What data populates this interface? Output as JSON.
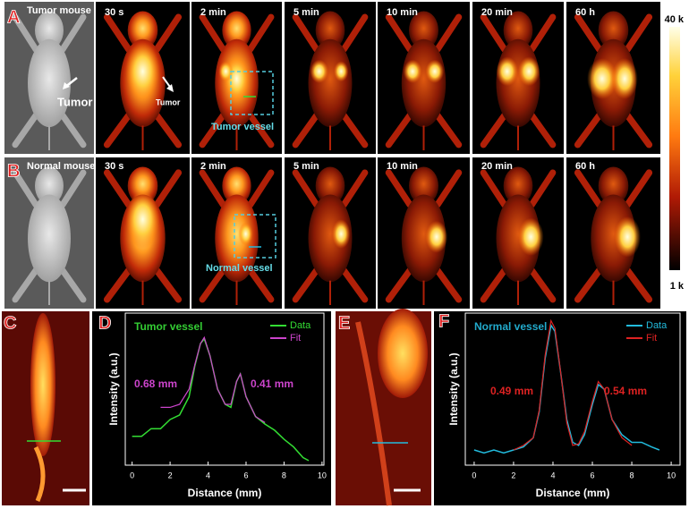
{
  "panels": {
    "row_a": {
      "letter": "A",
      "name": "Tumor mouse",
      "times": [
        "30 s",
        "2 min",
        "5 min",
        "10 min",
        "20 min",
        "60 h"
      ],
      "tumor_label": "Tumor",
      "tumor_label_small": "Tumor",
      "box_label": "Tumor vessel"
    },
    "row_b": {
      "letter": "B",
      "name": "Normal mouse",
      "times": [
        "30 s",
        "2 min",
        "5 min",
        "10 min",
        "20 min",
        "60 h"
      ],
      "box_label": "Normal vessel"
    },
    "panel_c": {
      "letter": "C"
    },
    "panel_e": {
      "letter": "E"
    }
  },
  "colorbar": {
    "top": "40 k",
    "bottom": "1 k"
  },
  "chart_data": [
    {
      "type": "line",
      "letter": "D",
      "title": "Tumor vessel",
      "title_color": "#33cc33",
      "xlabel": "Distance (mm)",
      "ylabel": "Intensity (a.u.)",
      "x": [
        0,
        0.5,
        1,
        1.5,
        2,
        2.5,
        3,
        3.3,
        3.6,
        3.8,
        4.1,
        4.5,
        4.9,
        5.2,
        5.5,
        5.7,
        6,
        6.5,
        7,
        7.5,
        8,
        8.5,
        9,
        9.3
      ],
      "series": [
        {
          "name": "Data",
          "color": "#33dd33",
          "values": [
            0.19,
            0.19,
            0.24,
            0.24,
            0.3,
            0.33,
            0.45,
            0.65,
            0.8,
            0.83,
            0.72,
            0.5,
            0.4,
            0.38,
            0.55,
            0.6,
            0.45,
            0.32,
            0.27,
            0.23,
            0.17,
            0.12,
            0.05,
            0.03
          ]
        },
        {
          "name": "Fit",
          "color": "#cc44cc",
          "values": [
            null,
            null,
            null,
            0.38,
            0.38,
            0.4,
            0.5,
            0.66,
            0.8,
            0.84,
            0.72,
            0.5,
            0.4,
            0.4,
            0.55,
            0.6,
            0.45,
            0.32,
            0.28,
            null,
            null,
            null,
            null,
            null
          ]
        }
      ],
      "annotations": [
        {
          "text": "0.68 mm",
          "color": "#cc44cc"
        },
        {
          "text": "0.41 mm",
          "color": "#cc44cc"
        }
      ],
      "xlim": [
        -0.36,
        10.1
      ],
      "ylim": [
        0,
        1
      ],
      "xticks": [
        0,
        2,
        4,
        6,
        8,
        10
      ],
      "legend": "upper right"
    },
    {
      "type": "line",
      "letter": "F",
      "title": "Normal vessel",
      "title_color": "#22aacc",
      "xlabel": "Distance (mm)",
      "ylabel": "Intensity (a.u.)",
      "x": [
        0,
        0.5,
        1,
        1.5,
        2,
        2.5,
        3,
        3.3,
        3.6,
        3.9,
        4.1,
        4.4,
        4.7,
        5,
        5.3,
        5.6,
        6,
        6.3,
        6.6,
        7,
        7.5,
        8,
        8.5,
        9,
        9.4
      ],
      "series": [
        {
          "name": "Data",
          "color": "#22bbdd",
          "values": [
            0.1,
            0.08,
            0.1,
            0.08,
            0.1,
            0.12,
            0.18,
            0.35,
            0.7,
            0.92,
            0.88,
            0.6,
            0.3,
            0.15,
            0.13,
            0.2,
            0.4,
            0.53,
            0.5,
            0.3,
            0.2,
            0.15,
            0.15,
            0.12,
            0.1
          ]
        },
        {
          "name": "Fit",
          "color": "#dd2222",
          "values": [
            null,
            null,
            null,
            null,
            0.1,
            0.13,
            0.18,
            0.36,
            0.72,
            0.95,
            0.9,
            0.6,
            0.28,
            0.13,
            0.14,
            0.22,
            0.42,
            0.55,
            0.5,
            0.3,
            0.18,
            0.13,
            null,
            null,
            null
          ]
        }
      ],
      "annotations": [
        {
          "text": "0.49 mm",
          "color": "#dd2222"
        },
        {
          "text": "0.54 mm",
          "color": "#dd2222"
        }
      ],
      "xlim": [
        -0.45,
        10.45
      ],
      "ylim": [
        0,
        1
      ],
      "xticks": [
        0,
        2,
        4,
        6,
        8,
        10
      ],
      "legend": "upper right"
    }
  ]
}
